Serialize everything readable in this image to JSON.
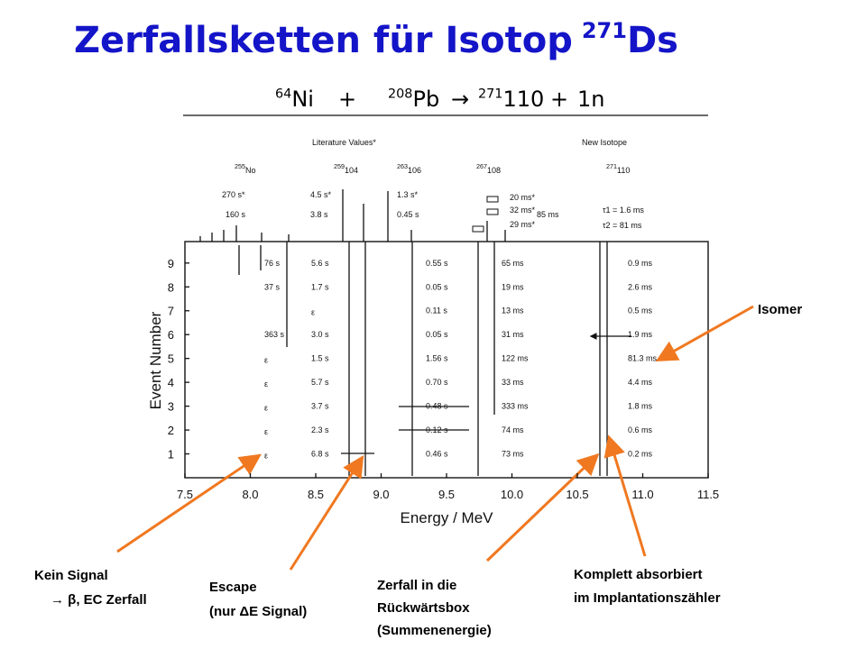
{
  "title": {
    "text": "Zerfallsketten für Isotop",
    "sup": "271",
    "end": "Ds"
  },
  "reaction": [
    {
      "sup": "64",
      "text": "Ni"
    },
    {
      "text": "+"
    },
    {
      "sup": "208",
      "text": "Pb"
    },
    {
      "text": "→"
    },
    {
      "sup": "271",
      "text": "110"
    },
    {
      "text": "+"
    },
    {
      "text": "1n"
    }
  ],
  "figure": {
    "headers": [
      "Literature Values*",
      "New Isotope"
    ],
    "isotopes": [
      {
        "sup": "255",
        "text": "No"
      },
      {
        "sup": "259",
        "text": "104"
      },
      {
        "sup": "263",
        "text": "106"
      },
      {
        "sup": "267",
        "text": "108"
      },
      {
        "sup": "271",
        "text": "110"
      }
    ],
    "half_lives": [
      "270 s*",
      "160 s",
      "4.5 s*",
      "3.8 s",
      "1.3 s*",
      "0.45 s",
      "20 ms*",
      "32 ms*",
      "29 ms*",
      "85 ms",
      "τ1 = 1.6 ms",
      "τ2 = 81 ms"
    ],
    "y_label": "Event Number",
    "x_label": "Energy / MeV",
    "xlim": [
      7.5,
      11.5
    ],
    "xticks": [
      7.5,
      {
        "value": 8,
        "label": "8.0"
      },
      8.5,
      {
        "value": 9,
        "label": "9.0"
      },
      9.5,
      {
        "value": 10,
        "label": "10.0"
      },
      10.5,
      {
        "value": 11,
        "label": "11.0"
      },
      11.5
    ],
    "ylim": [
      0,
      9.9
    ],
    "yticks": [
      1,
      2,
      3,
      4,
      5,
      6,
      7,
      8,
      9
    ],
    "columns": [
      [
        "76 s",
        "37 s",
        null,
        "363 s",
        "ε",
        "ε",
        "ε",
        "ε",
        "ε"
      ],
      [
        "5.6 s",
        "1.7 s",
        "ε",
        "3.0 s",
        "1.5 s",
        "5.7 s",
        "3.7 s",
        "2.3 s",
        "6.8 s"
      ],
      [
        "0.55 s",
        "0.05 s",
        "0.11 s",
        "0.05 s",
        "1.56 s",
        "0.70 s",
        "0.48 s",
        "0.12 s",
        "0.46 s"
      ],
      [
        "65 ms",
        "19 ms",
        "13 ms",
        "31 ms",
        "122 ms",
        "33 ms",
        "333 ms",
        "74 ms",
        "73 ms"
      ],
      [
        "0.9 ms",
        "2.6 ms",
        "0.5 ms",
        "1.9 ms",
        "81.3 ms",
        "4.4 ms",
        "1.8 ms",
        "0.6 ms",
        "0.2 ms"
      ]
    ]
  },
  "annotations": {
    "isomer": "Isomer",
    "kein_signal": [
      "Kein Signal",
      "→ β, EC Zerfall"
    ],
    "escape": [
      "Escape",
      "(nur ΔE Signal)"
    ],
    "rueckwaerts": [
      "Zerfall in die",
      "Rückwärtsbox",
      "(Summenenergie)"
    ],
    "komplett": [
      "Komplett absorbiert",
      "im Implantationszähler"
    ]
  }
}
